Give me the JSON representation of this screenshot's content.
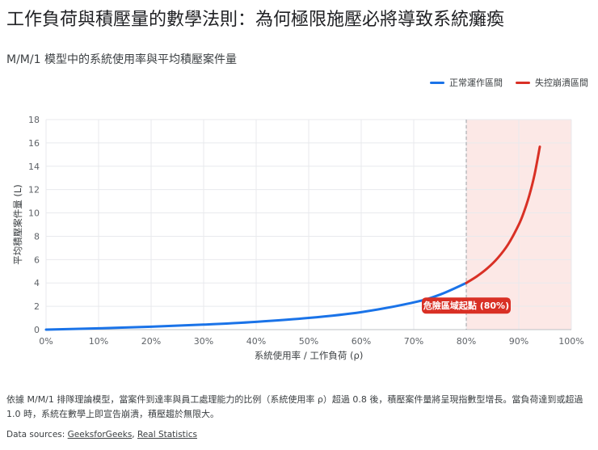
{
  "title": "工作負荷與積壓量的數學法則：為何極限施壓必將導致系統癱瘓",
  "subtitle": "M/M/1 模型中的系統使用率與平均積壓案件量",
  "legend": [
    {
      "label": "正常運作區間",
      "color": "#1a73e8"
    },
    {
      "label": "失控崩潰區間",
      "color": "#d93025"
    }
  ],
  "chart_data": {
    "type": "line",
    "xlabel": "系統使用率 / 工作負荷 (ρ)",
    "ylabel": "平均積壓案件量 (L)",
    "xlim": [
      0,
      100
    ],
    "ylim": [
      0,
      18
    ],
    "x_ticks": [
      "0%",
      "10%",
      "20%",
      "30%",
      "40%",
      "50%",
      "60%",
      "70%",
      "80%",
      "90%",
      "100%"
    ],
    "y_ticks": [
      "0",
      "2",
      "4",
      "6",
      "8",
      "10",
      "12",
      "14",
      "16",
      "18"
    ],
    "grid": true,
    "legend_position": "top-right",
    "series": [
      {
        "name": "正常運作區間",
        "color": "#1a73e8",
        "x": [
          0,
          10,
          20,
          30,
          40,
          50,
          60,
          70,
          75,
          80
        ],
        "y": [
          0,
          0.11,
          0.25,
          0.43,
          0.67,
          1.0,
          1.5,
          2.33,
          3.0,
          4.0
        ]
      },
      {
        "name": "失控崩潰區間",
        "color": "#d93025",
        "x": [
          80,
          82,
          84,
          86,
          88,
          90,
          91,
          92,
          93,
          94
        ],
        "y": [
          4.0,
          4.56,
          5.25,
          6.14,
          7.33,
          9.0,
          10.11,
          11.5,
          13.29,
          15.67
        ]
      }
    ],
    "shaded_region": {
      "x_from": 80,
      "x_to": 100,
      "color": "#fce8e6"
    },
    "threshold_line": {
      "x": 80
    },
    "annotation": {
      "text": "危險區域起點 (80%)",
      "x": 80,
      "y": 4.0,
      "color": "#d93025"
    }
  },
  "note": "依據 M/M/1 排隊理論模型，當案件到達率與員工處理能力的比例（系統使用率 ρ）超過 0.8 後，積壓案件量將呈現指數型增長。當負荷達到或超過 1.0 時，系統在數學上即宣告崩潰，積壓趨於無限大。",
  "sources": {
    "prefix": "Data sources:",
    "links": [
      "GeeksforGeeks",
      "Real Statistics"
    ]
  }
}
